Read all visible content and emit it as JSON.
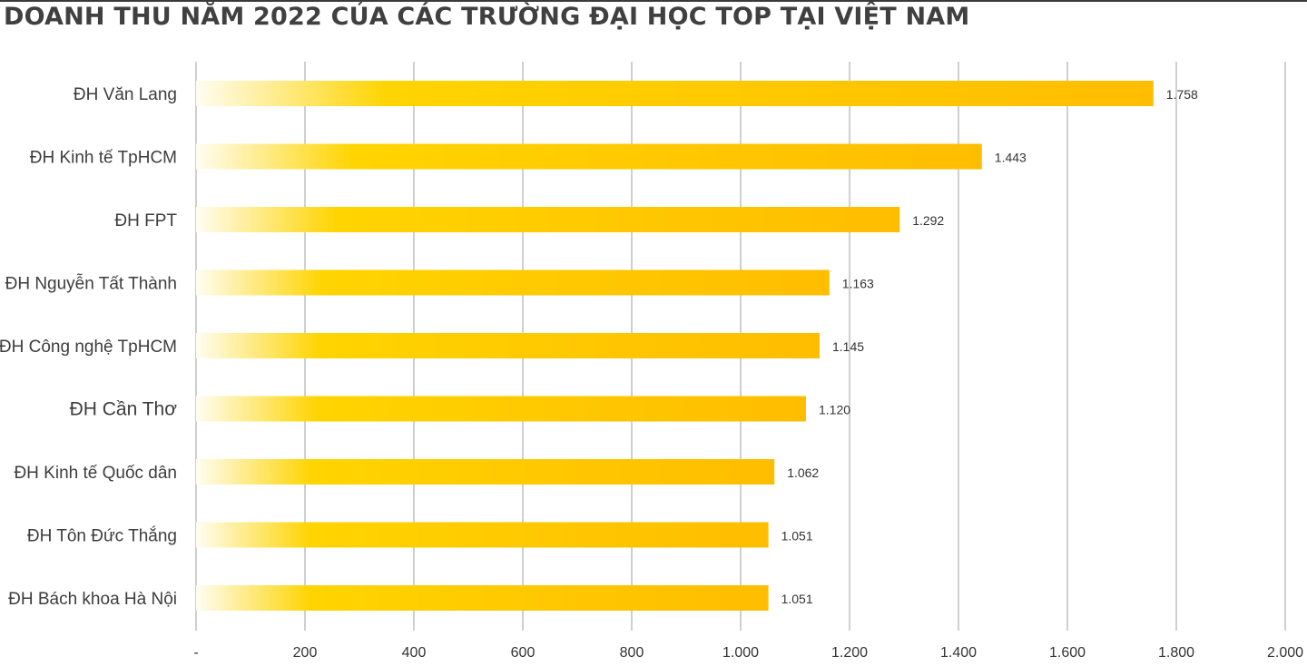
{
  "chart_data": {
    "type": "bar",
    "orientation": "horizontal",
    "title": "DOANH THU NĂM 2022 CỦA CÁC TRƯỜNG ĐẠI HỌC TOP TẠI VIỆT NAM",
    "categories": [
      "ĐH Văn Lang",
      "ĐH Kinh tế TpHCM",
      "ĐH FPT",
      "ĐH Nguyễn Tất Thành",
      "ĐH Công nghệ TpHCM",
      "ĐH Cần Thơ",
      "ĐH Kinh tế Quốc dân",
      "ĐH Tôn Đức Thắng",
      "ĐH Bách khoa Hà Nội"
    ],
    "values": [
      1758,
      1443,
      1292,
      1163,
      1145,
      1120,
      1062,
      1051,
      1051
    ],
    "value_labels": [
      "1.758",
      "1.443",
      "1.292",
      "1.163",
      "1.145",
      "1.120",
      "1.062",
      "1.051",
      "1.051"
    ],
    "x_ticks": [
      0,
      200,
      400,
      600,
      800,
      1000,
      1200,
      1400,
      1600,
      1800,
      2000
    ],
    "x_tick_labels": [
      "-",
      "200",
      "400",
      "600",
      "800",
      "1.000",
      "1.200",
      "1.400",
      "1.600",
      "1.800",
      "2.000"
    ],
    "xlim": [
      0,
      2000
    ],
    "grid": "vertical",
    "legend": "none",
    "colors": {
      "bar_start": "#fffdf2",
      "bar_mid": "#ffd400",
      "bar_end": "#ffbd00",
      "grid": "#cfcfcf",
      "title": "#404040"
    }
  }
}
